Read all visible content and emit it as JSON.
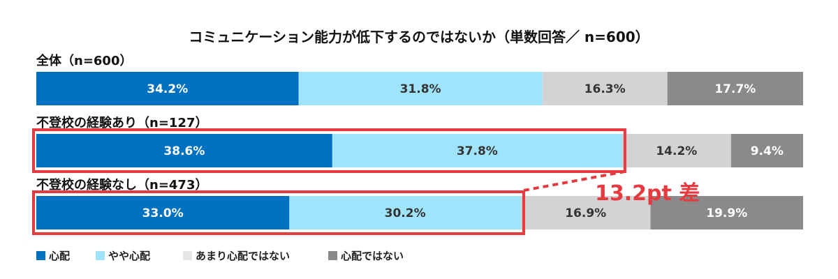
{
  "chart_data": {
    "type": "bar",
    "orientation": "horizontal-stacked-100",
    "title": "コミュニケーション能力が低下するのではないか（単数回答／ n=600）",
    "groups": [
      {
        "label": "全体（n=600）",
        "values": [
          34.2,
          31.8,
          16.3,
          17.7
        ]
      },
      {
        "label": "不登校の経験あり（n=127）",
        "values": [
          38.6,
          37.8,
          14.2,
          9.4
        ]
      },
      {
        "label": "不登校の経験なし（n=473）",
        "values": [
          33.0,
          30.2,
          16.9,
          19.9
        ]
      }
    ],
    "series": [
      {
        "name": "心配",
        "color": "#0070c0"
      },
      {
        "name": "やや心配",
        "color": "#a0e4fb"
      },
      {
        "name": "あまり心配ではない",
        "color": "#d3d3d3"
      },
      {
        "name": "心配ではない",
        "color": "#8a8a8a"
      }
    ],
    "value_labels": [
      [
        "34.2%",
        "31.8%",
        "16.3%",
        "17.7%"
      ],
      [
        "38.6%",
        "37.8%",
        "14.2%",
        "9.4%"
      ],
      [
        "33.0%",
        "30.2%",
        "16.9%",
        "19.9%"
      ]
    ],
    "annotation": {
      "text": "13.2pt 差",
      "compare_groups": [
        1,
        2
      ],
      "highlight_series_count": 2,
      "color": "#e53a3f"
    },
    "xlim": [
      0,
      100
    ],
    "legend_position": "bottom-left"
  }
}
